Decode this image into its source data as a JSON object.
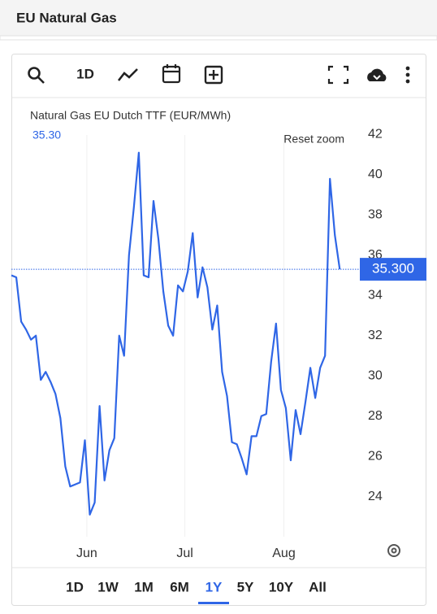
{
  "header": {
    "title": "EU Natural Gas"
  },
  "toolbar": {
    "interval": "1D"
  },
  "chart_data": {
    "type": "line",
    "title": "Natural Gas EU Dutch TTF (EUR/MWh)",
    "legend_value": "35.30",
    "last_label": "35.300",
    "reset": "Reset zoom",
    "series": [
      {
        "name": "Natural Gas EU Dutch TTF (EUR/MWh)",
        "color": "#2f66e6",
        "values": [
          35.0,
          34.9,
          32.7,
          32.3,
          31.8,
          32.0,
          29.8,
          30.2,
          29.7,
          29.1,
          27.9,
          25.5,
          24.5,
          24.6,
          24.7,
          26.8,
          23.1,
          23.7,
          28.5,
          24.8,
          26.3,
          26.9,
          32.0,
          31.0,
          36.0,
          38.4,
          41.1,
          35.0,
          34.9,
          38.7,
          36.8,
          34.2,
          32.5,
          32.0,
          34.5,
          34.2,
          35.2,
          37.1,
          33.9,
          35.4,
          34.4,
          32.3,
          33.5,
          30.2,
          29.0,
          26.7,
          26.6,
          25.9,
          25.1,
          27.0,
          27.0,
          28.0,
          28.1,
          30.7,
          32.6,
          29.3,
          28.4,
          25.8,
          28.3,
          27.1,
          28.7,
          30.4,
          28.9,
          30.4,
          31.0,
          39.8,
          37.0,
          35.3
        ]
      }
    ],
    "xlim": [
      0,
      70.6
    ],
    "xticks": [
      {
        "value": 15.4,
        "label": "Jun"
      },
      {
        "value": 35.4,
        "label": "Jul"
      },
      {
        "value": 55.6,
        "label": "Aug"
      }
    ],
    "ylim": [
      22,
      44
    ],
    "yticks": [
      24,
      26,
      28,
      30,
      32,
      34,
      36,
      38,
      40,
      42
    ],
    "xgrid": true
  },
  "ranges": {
    "items": [
      "1D",
      "1W",
      "1M",
      "6M",
      "1Y",
      "5Y",
      "10Y",
      "All"
    ],
    "active": "1Y"
  }
}
